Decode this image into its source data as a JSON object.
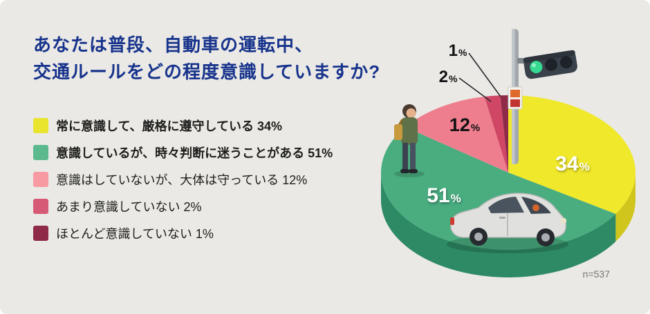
{
  "title": {
    "line1": "あなたは普段、自動車の運転中、",
    "line2": "交通ルールをどの程度意識していますか?"
  },
  "legend": {
    "items": [
      {
        "label": "常に意識して、厳格に遵守している 34%",
        "color": "#e9e42e"
      },
      {
        "label": "意識しているが、時々判断に迷うことがある 51%",
        "color": "#5cb98e"
      },
      {
        "label": "意識はしていないが、大体は守っている 12%",
        "color": "#f79aa1"
      },
      {
        "label": "あまり意識していない 2%",
        "color": "#d65a76"
      },
      {
        "label": "ほとんど意識していない 1%",
        "color": "#8f2a49"
      }
    ]
  },
  "sample": {
    "label": "n=537"
  },
  "chart_data": {
    "type": "pie",
    "style": "3d-ellipse",
    "title": "あなたは普段、自動車の運転中、交通ルールをどの程度意識していますか?",
    "labels": [
      "常に意識して、厳格に遵守している",
      "意識しているが、時々判断に迷うことがある",
      "意識はしていないが、大体は守っている",
      "あまり意識していない",
      "ほとんど意識していない"
    ],
    "values": [
      34,
      51,
      12,
      2,
      1
    ],
    "unit": "%",
    "colors": [
      "#f0e82b",
      "#49ad80",
      "#ee7e8e",
      "#d04766",
      "#8f2a49"
    ],
    "side_colors": [
      "#cfc51d",
      "#2d8a64",
      "#c95668",
      "#a33551",
      "#6e1f36"
    ],
    "start_angle_deg": 0,
    "direction": "clockwise",
    "legend_position": "left",
    "note": "n=537",
    "decorations": [
      "traffic-light-icon",
      "pedestrian-icon",
      "car-icon"
    ]
  }
}
